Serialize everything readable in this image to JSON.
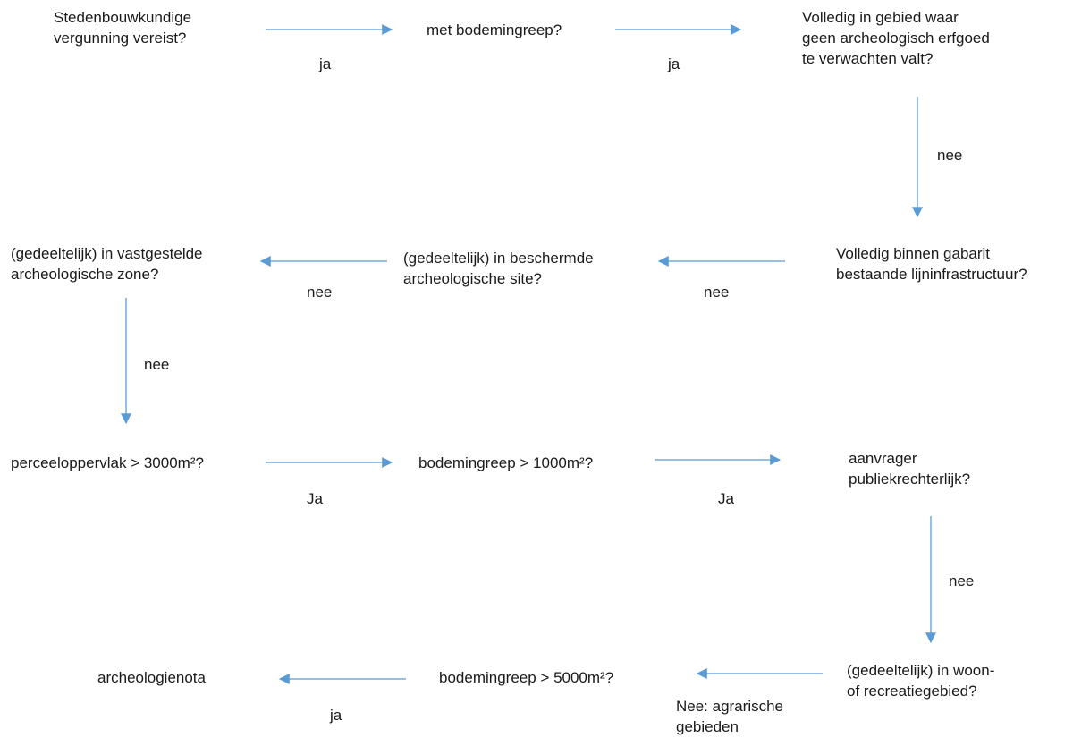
{
  "diagram": {
    "arrow_color": "#5b9bd5",
    "nodes": {
      "n1": [
        "Stedenbouwkundige",
        "vergunning vereist?"
      ],
      "n2": [
        "met bodemingreep?"
      ],
      "n3": [
        "Volledig in gebied waar",
        "geen archeologisch erfgoed",
        "te verwachten valt?"
      ],
      "n4": [
        "Volledig binnen gabarit",
        "bestaande lijninfrastructuur?"
      ],
      "n5": [
        "(gedeeltelijk) in beschermde",
        "archeologische site?"
      ],
      "n6": [
        "(gedeeltelijk) in vastgestelde",
        "archeologische zone?"
      ],
      "n7": [
        "perceeloppervlak > 3000m²?"
      ],
      "n8": [
        "bodemingreep > 1000m²?"
      ],
      "n9": [
        "aanvrager",
        "publiekrechterlijk?"
      ],
      "n10": [
        "(gedeeltelijk) in woon-",
        "of recreatiegebied?"
      ],
      "n11": [
        "bodemingreep > 5000m²?"
      ],
      "n12": [
        "archeologienota"
      ]
    },
    "edge_labels": {
      "e1": [
        "ja"
      ],
      "e2": [
        "ja"
      ],
      "e3": [
        "nee"
      ],
      "e4": [
        "nee"
      ],
      "e5": [
        "nee"
      ],
      "e6": [
        "nee"
      ],
      "e7": [
        "Ja"
      ],
      "e8": [
        "Ja"
      ],
      "e9": [
        "nee"
      ],
      "e10": [
        "Nee: agrarische",
        "gebieden"
      ],
      "e11": [
        "ja"
      ]
    }
  }
}
